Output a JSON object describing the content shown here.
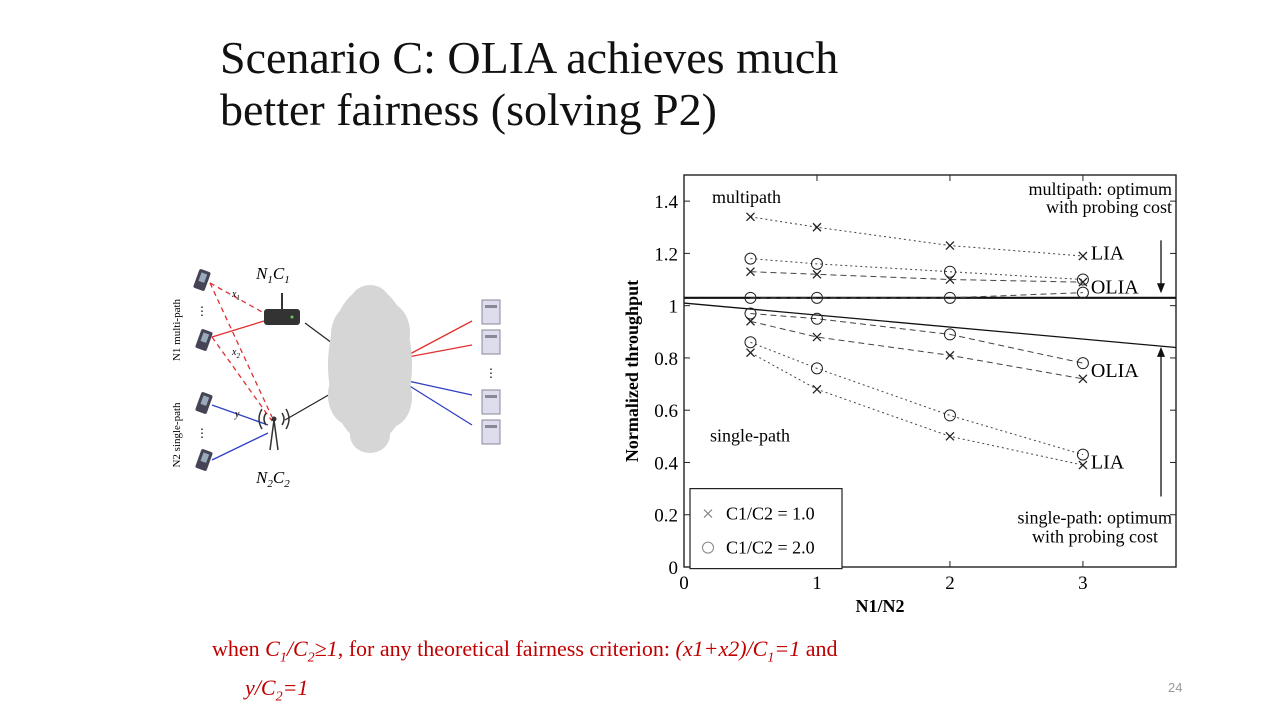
{
  "slide": {
    "title_line1": "Scenario C: OLIA achieves much",
    "title_line2": "better fairness (solving P2)",
    "page_number": "24",
    "caption": {
      "w_when": "when ",
      "c1": "C",
      "c1_sub": "1",
      "c2": "/C",
      "c2_sub": "2",
      "ge": "≥1",
      "mid": ", for any theoretical fairness criterion: ",
      "expr1": "(x1+x2)/C",
      "expr1_sub": "1",
      "expr1_tail": "=1",
      "and": " and",
      "y": "y/C",
      "y_sub": "2",
      "y_tail": "=1"
    }
  },
  "topology": {
    "n1_label": "N",
    "n1_sub": "1",
    "c1_label": "C",
    "c1_sub": "1",
    "n2_label": "N",
    "n2_sub": "2",
    "c2_label": "C",
    "c2_sub": "2",
    "group1_label": "N1 multi-path",
    "group2_label": "N2 single-path",
    "x1": "x",
    "x1_sub": "1",
    "x2": "x",
    "x2_sub": "2",
    "y": "y",
    "colors": {
      "multipath": "#e03030",
      "singlepath": "#3040c0",
      "cloud": "#d6d6d6"
    }
  },
  "chart_data": {
    "type": "line",
    "xlabel": "N1/N2",
    "ylabel": "Normalized throughput",
    "xlim": [
      0,
      3.7
    ],
    "ylim": [
      0,
      1.5
    ],
    "xticks": [
      "0",
      "1",
      "2",
      "3"
    ],
    "yticks": [
      "0",
      "0.2",
      "0.4",
      "0.6",
      "0.8",
      "1",
      "1.2",
      "1.4"
    ],
    "x": [
      0.5,
      1,
      2,
      3
    ],
    "series": [
      {
        "group": "multipath",
        "algo": "LIA",
        "ratio": "1.0",
        "marker": "x",
        "style": "dotted",
        "values": [
          1.34,
          1.3,
          1.23,
          1.19
        ]
      },
      {
        "group": "multipath",
        "algo": "LIA",
        "ratio": "2.0",
        "marker": "o",
        "style": "dotted",
        "values": [
          1.18,
          1.16,
          1.13,
          1.1
        ]
      },
      {
        "group": "multipath",
        "algo": "OLIA",
        "ratio": "1.0",
        "marker": "x",
        "style": "dashed",
        "values": [
          1.13,
          1.12,
          1.1,
          1.09
        ]
      },
      {
        "group": "multipath",
        "algo": "OLIA",
        "ratio": "2.0",
        "marker": "o",
        "style": "dashed",
        "values": [
          1.03,
          1.03,
          1.03,
          1.05
        ]
      },
      {
        "group": "single-path",
        "algo": "OLIA",
        "ratio": "2.0",
        "marker": "o",
        "style": "dashed",
        "values": [
          0.97,
          0.95,
          0.89,
          0.78
        ]
      },
      {
        "group": "single-path",
        "algo": "OLIA",
        "ratio": "1.0",
        "marker": "x",
        "style": "dashed",
        "values": [
          0.94,
          0.88,
          0.81,
          0.72
        ]
      },
      {
        "group": "single-path",
        "algo": "LIA",
        "ratio": "2.0",
        "marker": "o",
        "style": "dotted",
        "values": [
          0.86,
          0.76,
          0.58,
          0.43
        ]
      },
      {
        "group": "single-path",
        "algo": "LIA",
        "ratio": "1.0",
        "marker": "x",
        "style": "dotted",
        "values": [
          0.82,
          0.68,
          0.5,
          0.39
        ]
      }
    ],
    "reference_lines": [
      {
        "name": "multipath: optimum with probing cost",
        "y0": 1.03,
        "y1": 1.03
      },
      {
        "name": "single-path: optimum with probing cost",
        "y0": 1.01,
        "y1": 0.84
      }
    ],
    "annotations": {
      "multipath": "multipath",
      "single_path": "single-path",
      "multi_opt_line1": "multipath: optimum",
      "multi_opt_line2": "with probing cost",
      "single_opt_line1": "single-path: optimum",
      "single_opt_line2": "with probing cost",
      "lia_top": "LIA",
      "olia_top": "OLIA",
      "olia_bottom": "OLIA",
      "lia_bottom": "LIA"
    },
    "legend": [
      {
        "marker": "x",
        "text": "C1/C2 = 1.0"
      },
      {
        "marker": "o",
        "text": "C1/C2 = 2.0"
      }
    ],
    "legend_position": "bottom-left",
    "grid": false
  }
}
